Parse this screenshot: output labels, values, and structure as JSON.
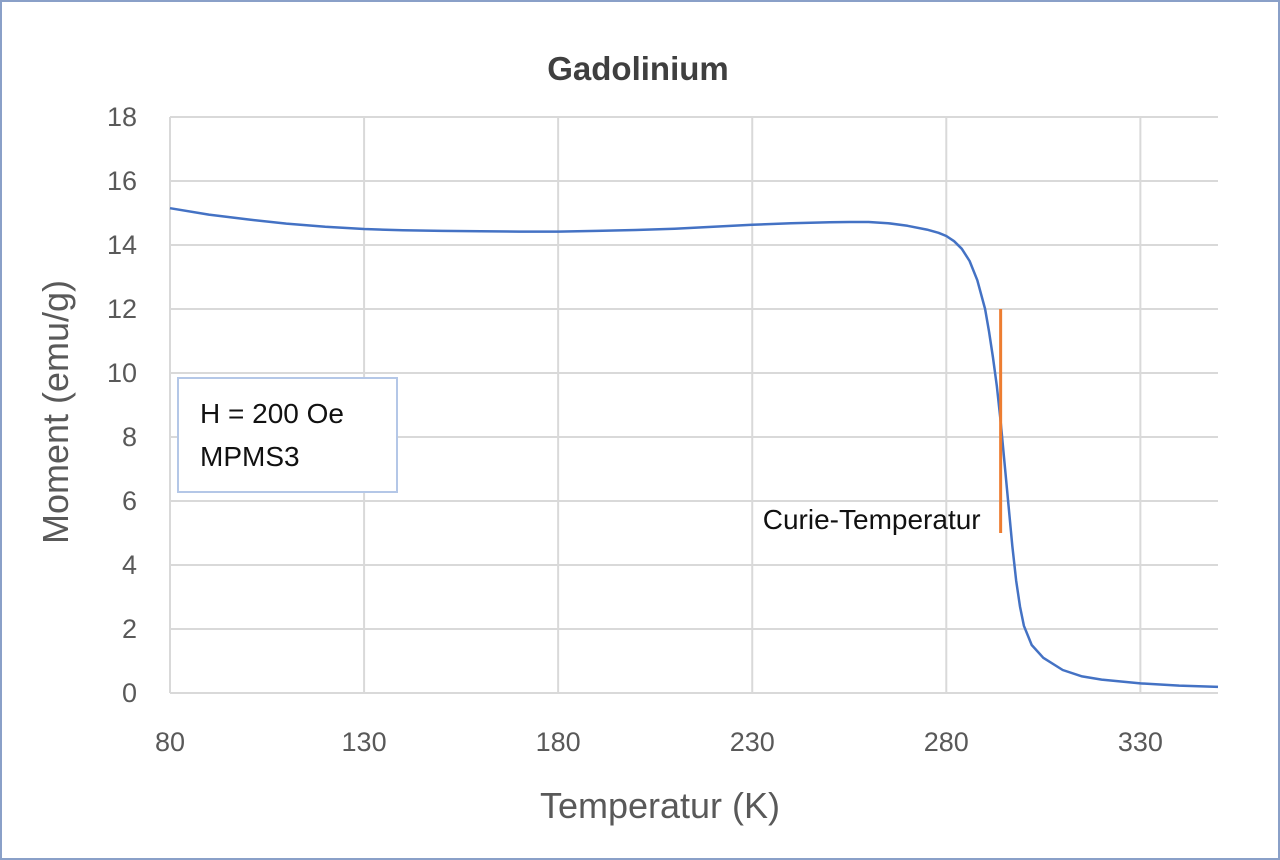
{
  "chart_data": {
    "type": "line",
    "title": "Gadolinium",
    "xlabel": "Temperatur (K)",
    "ylabel": "Moment (emu/g)",
    "xlim": [
      80,
      350
    ],
    "ylim": [
      0,
      18
    ],
    "xticks": [
      80,
      130,
      180,
      230,
      280,
      330
    ],
    "yticks": [
      0,
      2,
      4,
      6,
      8,
      10,
      12,
      14,
      16,
      18
    ],
    "grid": true,
    "legend": "none",
    "series": [
      {
        "color": "#4472c4",
        "x": [
          80,
          90,
          100,
          110,
          120,
          130,
          140,
          150,
          160,
          170,
          180,
          190,
          200,
          210,
          220,
          230,
          240,
          250,
          255,
          260,
          265,
          270,
          275,
          278,
          280,
          282,
          284,
          286,
          288,
          290,
          291,
          292,
          293,
          294,
          295,
          296,
          297,
          298,
          299,
          300,
          302,
          305,
          310,
          315,
          320,
          330,
          340,
          350
        ],
        "y": [
          15.15,
          14.95,
          14.8,
          14.67,
          14.57,
          14.5,
          14.46,
          14.44,
          14.43,
          14.42,
          14.42,
          14.44,
          14.47,
          14.51,
          14.57,
          14.63,
          14.68,
          14.71,
          14.72,
          14.72,
          14.68,
          14.6,
          14.48,
          14.38,
          14.28,
          14.12,
          13.88,
          13.5,
          12.9,
          12.0,
          11.3,
          10.5,
          9.6,
          8.5,
          7.2,
          5.9,
          4.6,
          3.5,
          2.7,
          2.1,
          1.5,
          1.1,
          0.72,
          0.52,
          0.42,
          0.3,
          0.23,
          0.19
        ]
      }
    ],
    "annotations": [
      {
        "text": "Curie-Temperatur",
        "x": 294,
        "y_range": [
          5,
          12
        ],
        "line_color": "#ed7d31"
      }
    ],
    "textbox": [
      "H = 200 Oe",
      "MPMS3"
    ]
  }
}
